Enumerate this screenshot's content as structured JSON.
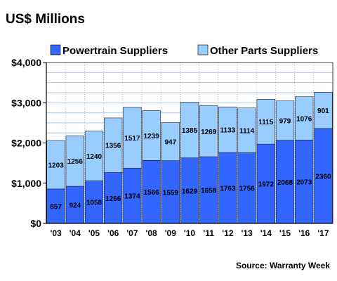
{
  "chart_data": {
    "type": "bar",
    "stacked": true,
    "title": "US$ Millions",
    "source": "Source: Warranty Week",
    "categories": [
      "'03",
      "'04",
      "'05",
      "'06",
      "'07",
      "'08",
      "'09",
      "'10",
      "'11",
      "'12",
      "'13",
      "'14",
      "'15",
      "'16",
      "'17"
    ],
    "series": [
      {
        "name": "Powertrain Suppliers",
        "color": "#3366ff",
        "values": [
          857,
          924,
          1058,
          1266,
          1374,
          1566,
          1559,
          1629,
          1658,
          1763,
          1756,
          1972,
          2068,
          2073,
          2360
        ]
      },
      {
        "name": "Other Parts Suppliers",
        "color": "#99ccff",
        "values": [
          1203,
          1256,
          1240,
          1356,
          1517,
          1239,
          947,
          1385,
          1269,
          1133,
          1114,
          1115,
          979,
          1076,
          901
        ]
      }
    ],
    "ylim": [
      0,
      4000
    ],
    "yticks": [
      0,
      1000,
      2000,
      3000,
      4000
    ],
    "ytick_labels": [
      "$0",
      "$1,000",
      "$2,000",
      "$3,000",
      "$4,000"
    ],
    "grid": true,
    "legend_position": "top"
  }
}
